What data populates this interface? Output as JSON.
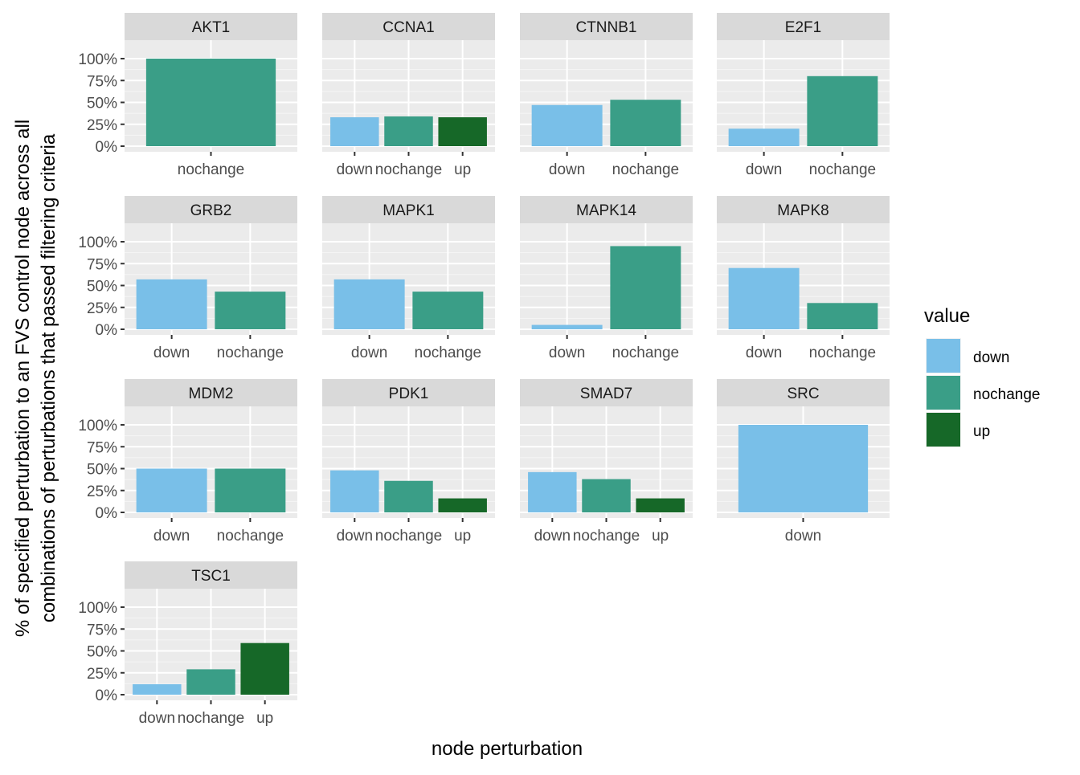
{
  "chart_data": {
    "type": "bar",
    "facet_type": "facet_wrap",
    "ylabel_lines": [
      "% of specified perturbation to an FVS control node across all",
      "combinations of perturbations that passed filtering criteria"
    ],
    "xlabel": "node perturbation",
    "y_unit": "%",
    "ylim": [
      0,
      100
    ],
    "yticks": [
      0,
      25,
      50,
      75,
      100
    ],
    "ytick_labels": [
      "0%",
      "25%",
      "50%",
      "75%",
      "100%"
    ],
    "grid": true,
    "legend": {
      "title": "value",
      "position": "right",
      "entries": [
        {
          "label": "down",
          "color": "#79BFE8"
        },
        {
          "label": "nochange",
          "color": "#3A9E87"
        },
        {
          "label": "up",
          "color": "#166828"
        }
      ]
    },
    "facets": [
      {
        "title": "AKT1",
        "categories": [
          "nochange"
        ],
        "values": [
          100
        ]
      },
      {
        "title": "CCNA1",
        "categories": [
          "down",
          "nochange",
          "up"
        ],
        "values": [
          33,
          34,
          33
        ]
      },
      {
        "title": "CTNNB1",
        "categories": [
          "down",
          "nochange"
        ],
        "values": [
          47,
          53
        ]
      },
      {
        "title": "E2F1",
        "categories": [
          "down",
          "nochange"
        ],
        "values": [
          20,
          80
        ]
      },
      {
        "title": "GRB2",
        "categories": [
          "down",
          "nochange"
        ],
        "values": [
          57,
          43
        ]
      },
      {
        "title": "MAPK1",
        "categories": [
          "down",
          "nochange"
        ],
        "values": [
          57,
          43
        ]
      },
      {
        "title": "MAPK14",
        "categories": [
          "down",
          "nochange"
        ],
        "values": [
          5,
          95
        ]
      },
      {
        "title": "MAPK8",
        "categories": [
          "down",
          "nochange"
        ],
        "values": [
          70,
          30
        ]
      },
      {
        "title": "MDM2",
        "categories": [
          "down",
          "nochange"
        ],
        "values": [
          50,
          50
        ]
      },
      {
        "title": "PDK1",
        "categories": [
          "down",
          "nochange",
          "up"
        ],
        "values": [
          48,
          36,
          16
        ]
      },
      {
        "title": "SMAD7",
        "categories": [
          "down",
          "nochange",
          "up"
        ],
        "values": [
          46,
          38,
          16
        ]
      },
      {
        "title": "SRC",
        "categories": [
          "down"
        ],
        "values": [
          100
        ]
      },
      {
        "title": "TSC1",
        "categories": [
          "down",
          "nochange",
          "up"
        ],
        "values": [
          12,
          29,
          59
        ]
      }
    ]
  }
}
